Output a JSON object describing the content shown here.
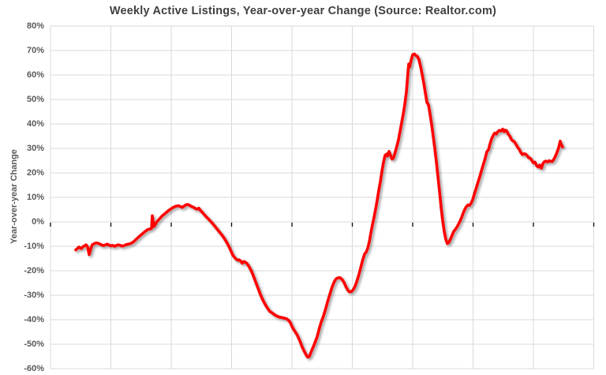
{
  "chart_data": {
    "type": "line",
    "title": "Weekly Active Listings, Year-over-year Change (Source: Realtor.com)",
    "ylabel": "Year-over-year Change",
    "xlabel": "",
    "units": "percent",
    "ylim": [
      -60,
      80
    ],
    "y_tick_step": 10,
    "y_tick_labels": [
      "80%",
      "70%",
      "60%",
      "50%",
      "40%",
      "30%",
      "20%",
      "10%",
      "0%",
      "-10%",
      "-20%",
      "-30%",
      "-40%",
      "-50%",
      "-60%"
    ],
    "x_tick_labels": [],
    "x_axis_labels_visible": false,
    "grid": "both",
    "legend": "none",
    "series_color": "#ff0000",
    "zero_line_color": "#000000",
    "gridline_color": "#d9d9d9",
    "text_color": "#595959",
    "title_color": "#404040",
    "background_color": "#ffffff",
    "series": [
      {
        "name": "Weekly Active Listings, Year-over-year Change",
        "note": "weekly points; x = horizontal position (unlabeled time axis, px), y = YoY change in %",
        "points": [
          [
            96,
            -11.5
          ],
          [
            98,
            -10.9
          ],
          [
            100,
            -10.3
          ],
          [
            103,
            -10.9
          ],
          [
            105,
            -10.2
          ],
          [
            107,
            -9.8
          ],
          [
            109,
            -9.4
          ],
          [
            111,
            -10.2
          ],
          [
            113,
            -13.4
          ],
          [
            115,
            -11.0
          ],
          [
            117,
            -9.4
          ],
          [
            120,
            -8.8
          ],
          [
            122,
            -8.6
          ],
          [
            124,
            -8.7
          ],
          [
            126,
            -9.0
          ],
          [
            128,
            -9.3
          ],
          [
            131,
            -9.7
          ],
          [
            134,
            -9.4
          ],
          [
            136,
            -9.1
          ],
          [
            138,
            -9.5
          ],
          [
            140,
            -9.8
          ],
          [
            143,
            -9.6
          ],
          [
            145,
            -10.0
          ],
          [
            148,
            -9.6
          ],
          [
            150,
            -9.4
          ],
          [
            153,
            -9.7
          ],
          [
            155,
            -9.9
          ],
          [
            158,
            -9.6
          ],
          [
            160,
            -9.3
          ],
          [
            163,
            -9.1
          ],
          [
            166,
            -8.8
          ],
          [
            169,
            -8.2
          ],
          [
            172,
            -7.3
          ],
          [
            175,
            -6.4
          ],
          [
            178,
            -5.5
          ],
          [
            181,
            -4.7
          ],
          [
            184,
            -3.9
          ],
          [
            187,
            -3.2
          ],
          [
            190,
            -2.9
          ],
          [
            192,
            -2.7
          ],
          [
            193,
            2.5
          ],
          [
            195,
            -1.9
          ],
          [
            197,
            -0.9
          ],
          [
            199,
            0.1
          ],
          [
            202,
            1.2
          ],
          [
            205,
            2.3
          ],
          [
            208,
            3.1
          ],
          [
            211,
            3.9
          ],
          [
            214,
            4.7
          ],
          [
            217,
            5.4
          ],
          [
            220,
            6.0
          ],
          [
            223,
            6.4
          ],
          [
            226,
            6.6
          ],
          [
            229,
            6.2
          ],
          [
            231,
            5.9
          ],
          [
            233,
            6.4
          ],
          [
            236,
            7.0
          ],
          [
            238,
            7.1
          ],
          [
            240,
            6.8
          ],
          [
            242,
            6.4
          ],
          [
            245,
            6.0
          ],
          [
            248,
            5.4
          ],
          [
            250,
            5.2
          ],
          [
            252,
            5.6
          ],
          [
            254,
            4.7
          ],
          [
            256,
            4.0
          ],
          [
            258,
            3.3
          ],
          [
            261,
            2.2
          ],
          [
            264,
            1.2
          ],
          [
            267,
            0.2
          ],
          [
            269,
            -0.5
          ],
          [
            272,
            -1.7
          ],
          [
            275,
            -2.9
          ],
          [
            278,
            -4.1
          ],
          [
            281,
            -5.3
          ],
          [
            284,
            -6.6
          ],
          [
            287,
            -8.2
          ],
          [
            290,
            -10.0
          ],
          [
            292,
            -11.4
          ],
          [
            295,
            -13.6
          ],
          [
            298,
            -14.8
          ],
          [
            301,
            -15.7
          ],
          [
            303,
            -15.5
          ],
          [
            305,
            -16.0
          ],
          [
            307,
            -16.9
          ],
          [
            309,
            -16.2
          ],
          [
            311,
            -16.5
          ],
          [
            313,
            -17.0
          ],
          [
            315,
            -18.0
          ],
          [
            317,
            -19.1
          ],
          [
            319,
            -20.4
          ],
          [
            321,
            -22.0
          ],
          [
            324,
            -24.6
          ],
          [
            327,
            -27.1
          ],
          [
            330,
            -29.7
          ],
          [
            333,
            -31.9
          ],
          [
            336,
            -33.7
          ],
          [
            339,
            -35.3
          ],
          [
            342,
            -36.6
          ],
          [
            345,
            -37.2
          ],
          [
            348,
            -38.0
          ],
          [
            351,
            -38.5
          ],
          [
            354,
            -38.9
          ],
          [
            357,
            -39.1
          ],
          [
            360,
            -39.3
          ],
          [
            363,
            -39.6
          ],
          [
            366,
            -40.3
          ],
          [
            368,
            -41.2
          ],
          [
            370,
            -42.7
          ],
          [
            372,
            -43.9
          ],
          [
            375,
            -45.4
          ],
          [
            377,
            -46.5
          ],
          [
            380,
            -48.6
          ],
          [
            383,
            -51.2
          ],
          [
            386,
            -53.2
          ],
          [
            388,
            -54.4
          ],
          [
            390,
            -55.3
          ],
          [
            392,
            -55.0
          ],
          [
            394,
            -53.4
          ],
          [
            396,
            -51.8
          ],
          [
            398,
            -50.3
          ],
          [
            400,
            -48.6
          ],
          [
            402,
            -46.8
          ],
          [
            405,
            -43.2
          ],
          [
            407,
            -41.0
          ],
          [
            410,
            -38.4
          ],
          [
            413,
            -35.2
          ],
          [
            415,
            -32.8
          ],
          [
            418,
            -29.6
          ],
          [
            421,
            -26.5
          ],
          [
            424,
            -24.2
          ],
          [
            426,
            -23.3
          ],
          [
            428,
            -22.9
          ],
          [
            431,
            -22.8
          ],
          [
            434,
            -23.7
          ],
          [
            436,
            -24.8
          ],
          [
            439,
            -26.9
          ],
          [
            441,
            -28.0
          ],
          [
            443,
            -28.6
          ],
          [
            445,
            -28.5
          ],
          [
            447,
            -28.0
          ],
          [
            449,
            -27.0
          ],
          [
            451,
            -25.4
          ],
          [
            454,
            -22.5
          ],
          [
            456,
            -20.1
          ],
          [
            458,
            -17.6
          ],
          [
            460,
            -15.2
          ],
          [
            462,
            -13.2
          ],
          [
            464,
            -12.4
          ],
          [
            466,
            -10.8
          ],
          [
            468,
            -8.2
          ],
          [
            470,
            -4.5
          ],
          [
            472,
            -1.2
          ],
          [
            474,
            1.8
          ],
          [
            476,
            5.2
          ],
          [
            478,
            8.8
          ],
          [
            480,
            12.8
          ],
          [
            482,
            16.4
          ],
          [
            484,
            20.6
          ],
          [
            486,
            24.3
          ],
          [
            488,
            27.2
          ],
          [
            490,
            27.7
          ],
          [
            491,
            26.9
          ],
          [
            493,
            28.8
          ],
          [
            495,
            27.1
          ],
          [
            497,
            25.6
          ],
          [
            499,
            26.4
          ],
          [
            501,
            28.6
          ],
          [
            503,
            31.0
          ],
          [
            505,
            33.5
          ],
          [
            507,
            37.0
          ],
          [
            509,
            40.5
          ],
          [
            511,
            44.0
          ],
          [
            513,
            48.0
          ],
          [
            515,
            53.0
          ],
          [
            516,
            57.0
          ],
          [
            517,
            61.0
          ],
          [
            518,
            64.5
          ],
          [
            519,
            63.2
          ],
          [
            521,
            66.0
          ],
          [
            523,
            68.3
          ],
          [
            525,
            68.6
          ],
          [
            527,
            68.0
          ],
          [
            529,
            67.6
          ],
          [
            531,
            66.2
          ],
          [
            533,
            63.5
          ],
          [
            535,
            60.2
          ],
          [
            537,
            56.8
          ],
          [
            539,
            52.8
          ],
          [
            541,
            48.9
          ],
          [
            543,
            47.8
          ],
          [
            545,
            44.0
          ],
          [
            547,
            39.8
          ],
          [
            549,
            35.0
          ],
          [
            551,
            30.0
          ],
          [
            553,
            24.5
          ],
          [
            555,
            18.5
          ],
          [
            557,
            12.5
          ],
          [
            559,
            6.0
          ],
          [
            561,
            0.5
          ],
          [
            563,
            -4.0
          ],
          [
            565,
            -7.2
          ],
          [
            567,
            -8.9
          ],
          [
            569,
            -8.3
          ],
          [
            571,
            -7.0
          ],
          [
            573,
            -5.4
          ],
          [
            575,
            -3.9
          ],
          [
            577,
            -3.1
          ],
          [
            579,
            -2.2
          ],
          [
            581,
            -1.0
          ],
          [
            583,
            0.3
          ],
          [
            585,
            1.8
          ],
          [
            587,
            3.6
          ],
          [
            589,
            5.1
          ],
          [
            591,
            6.2
          ],
          [
            593,
            6.9
          ],
          [
            595,
            6.7
          ],
          [
            597,
            7.6
          ],
          [
            599,
            9.0
          ],
          [
            601,
            11.2
          ],
          [
            603,
            13.3
          ],
          [
            605,
            15.4
          ],
          [
            607,
            17.4
          ],
          [
            609,
            19.6
          ],
          [
            611,
            21.8
          ],
          [
            613,
            24.0
          ],
          [
            615,
            26.1
          ],
          [
            617,
            28.7
          ],
          [
            619,
            29.4
          ],
          [
            621,
            31.8
          ],
          [
            623,
            33.9
          ],
          [
            625,
            35.3
          ],
          [
            627,
            36.3
          ],
          [
            629,
            35.9
          ],
          [
            631,
            36.9
          ],
          [
            633,
            37.4
          ],
          [
            635,
            37.1
          ],
          [
            637,
            37.9
          ],
          [
            639,
            36.9
          ],
          [
            640,
            37.5
          ],
          [
            642,
            37.2
          ],
          [
            644,
            35.9
          ],
          [
            646,
            35.1
          ],
          [
            648,
            33.7
          ],
          [
            650,
            33.1
          ],
          [
            652,
            32.7
          ],
          [
            654,
            31.6
          ],
          [
            656,
            30.5
          ],
          [
            658,
            29.6
          ],
          [
            660,
            28.4
          ],
          [
            662,
            27.5
          ],
          [
            664,
            27.8
          ],
          [
            666,
            27.7
          ],
          [
            668,
            27.1
          ],
          [
            670,
            26.2
          ],
          [
            672,
            26.0
          ],
          [
            674,
            25.1
          ],
          [
            676,
            24.1
          ],
          [
            678,
            24.4
          ],
          [
            680,
            23.0
          ],
          [
            682,
            22.4
          ],
          [
            684,
            23.2
          ],
          [
            686,
            21.9
          ],
          [
            688,
            23.8
          ],
          [
            690,
            24.6
          ],
          [
            692,
            24.8
          ],
          [
            694,
            24.5
          ],
          [
            696,
            25.0
          ],
          [
            698,
            24.7
          ],
          [
            700,
            24.7
          ],
          [
            702,
            25.6
          ],
          [
            704,
            26.9
          ],
          [
            706,
            28.5
          ],
          [
            708,
            30.3
          ],
          [
            710,
            33.0
          ],
          [
            711,
            31.8
          ],
          [
            713,
            30.6
          ]
        ]
      }
    ]
  }
}
